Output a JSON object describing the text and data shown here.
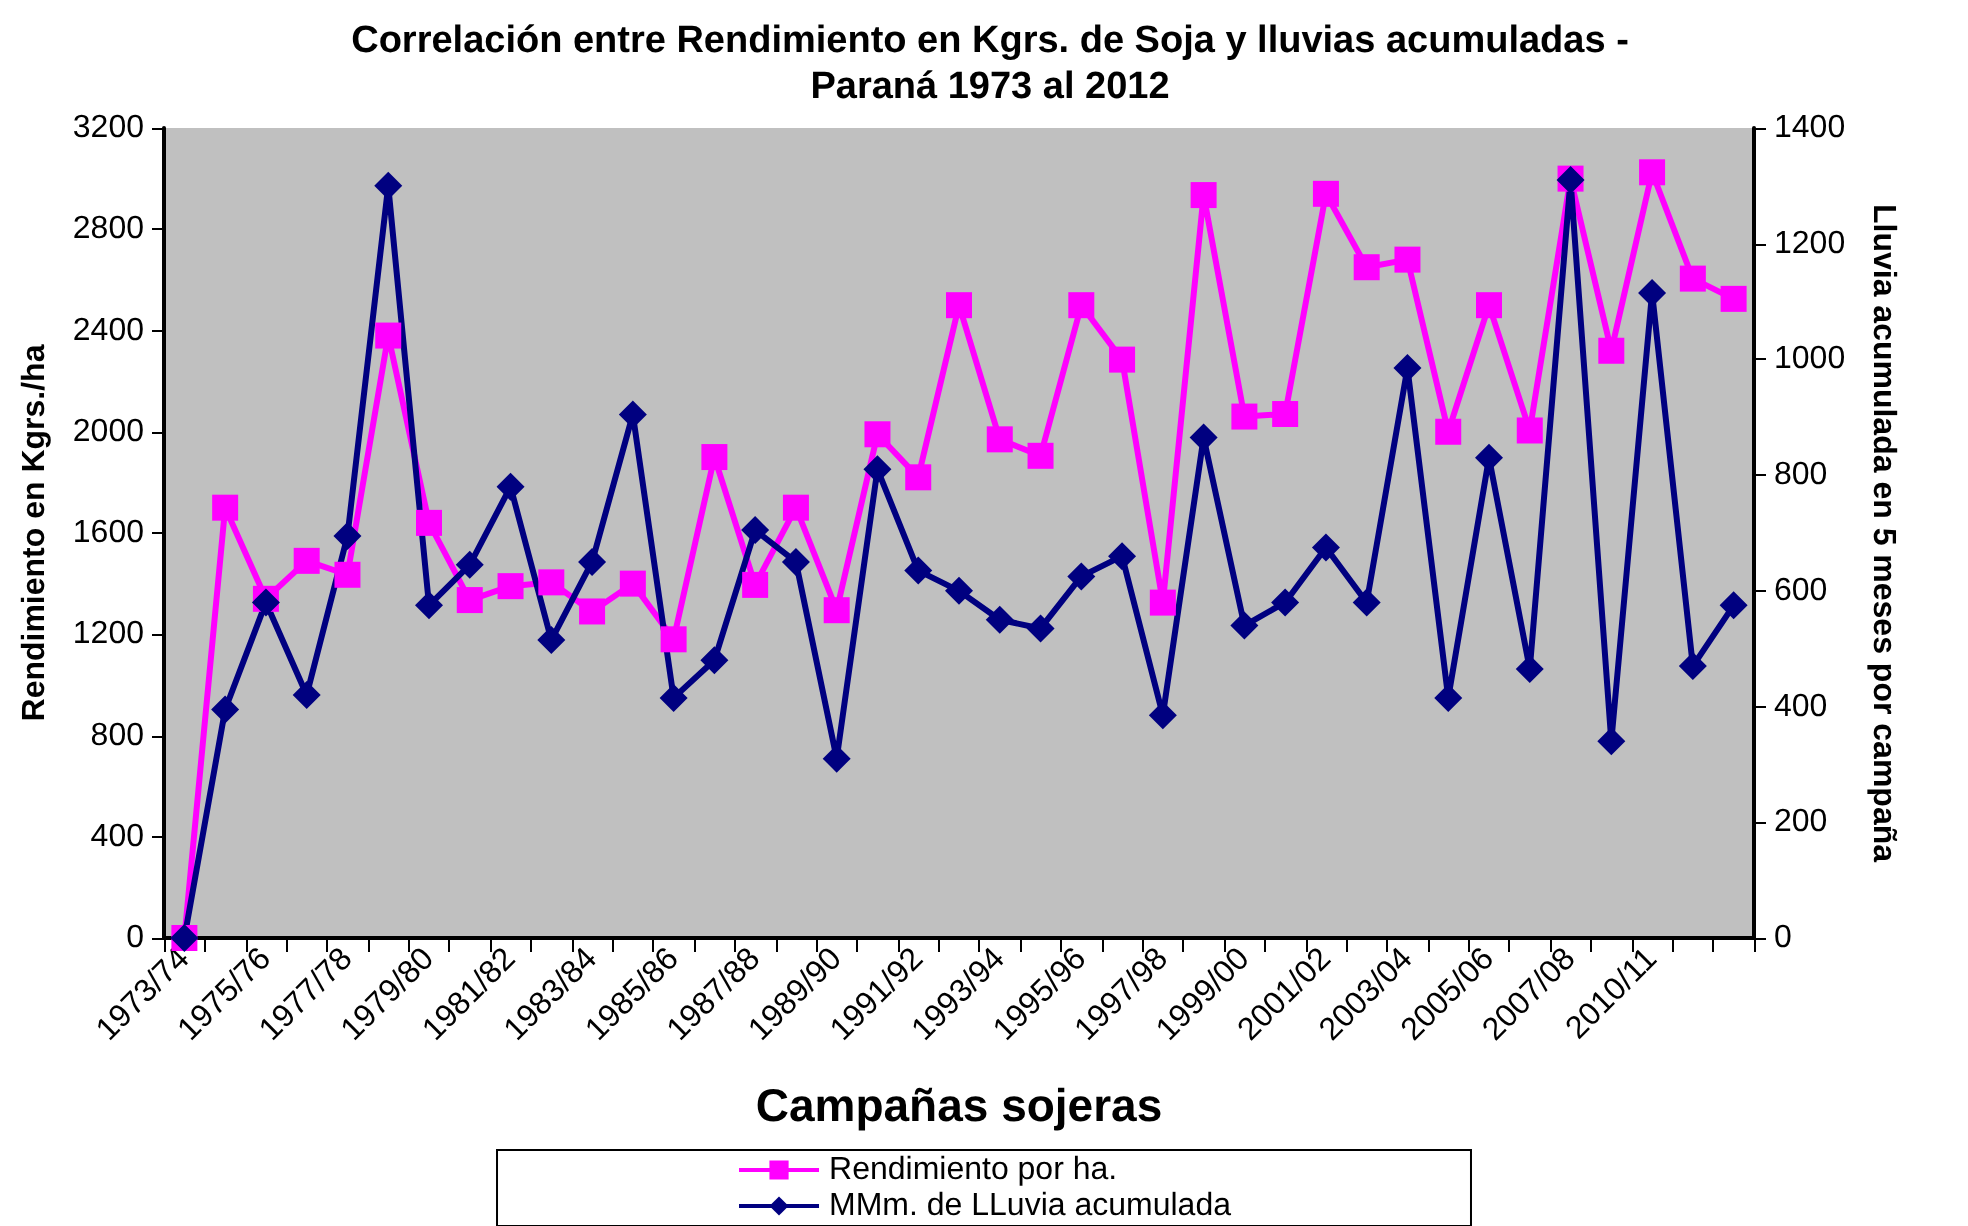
{
  "chart_data": {
    "type": "line",
    "title": "Correlación entre Rendimiento en Kgrs. de Soja y lluvias acumuladas -\nParaná 1973 al 2012",
    "xlabel": "Campañas sojeras",
    "ylabel": "Rendimiento en Kgrs./ha",
    "y2label": "Lluvia acumulada en 5 meses por campaña",
    "categories": [
      "1973/74",
      null,
      "1975/76",
      null,
      "1977/78",
      null,
      "1979/80",
      null,
      "1981/82",
      null,
      "1983/84",
      null,
      "1985/86",
      null,
      "1987/88",
      null,
      "1989/90",
      null,
      "1991/92",
      null,
      "1993/94",
      null,
      "1995/96",
      null,
      "1997/98",
      null,
      "1999/00",
      null,
      "2001/02",
      null,
      "2003/04",
      null,
      "2005/06",
      null,
      "2007/08",
      null,
      "2010/11",
      null,
      null
    ],
    "series": [
      {
        "name": "Rendimiento por ha.",
        "color": "#ff00ff",
        "marker": "square",
        "values": [
          0,
          1700,
          1340,
          1490,
          1435,
          2380,
          1640,
          1335,
          1390,
          1405,
          1290,
          1400,
          1180,
          1900,
          1395,
          1700,
          1295,
          1990,
          1820,
          2500,
          1970,
          1905,
          2500,
          2285,
          1325,
          2935,
          2060,
          2070,
          2940,
          2650,
          2680,
          2000,
          2500,
          2005,
          3000,
          2320,
          3025,
          2605,
          2525
        ]
      },
      {
        "name": "MMm. de LLuvia acumulada",
        "color": "#000080",
        "marker": "diamond",
        "axis": "y2",
        "values": [
          0,
          395,
          580,
          420,
          695,
          1300,
          575,
          645,
          780,
          515,
          650,
          905,
          415,
          480,
          705,
          650,
          310,
          810,
          635,
          600,
          550,
          535,
          625,
          660,
          385,
          865,
          540,
          580,
          675,
          580,
          985,
          415,
          830,
          465,
          1310,
          340,
          1115,
          470,
          575
        ]
      }
    ],
    "ylim": [
      0,
      3200
    ],
    "yticks": [
      0,
      400,
      800,
      1200,
      1600,
      2000,
      2400,
      2800,
      3200
    ],
    "y2lim": [
      0,
      1400
    ],
    "y2ticks": [
      0,
      200,
      400,
      600,
      800,
      1000,
      1200,
      1400
    ],
    "grid": false,
    "legend": "bottom",
    "line_style": "solid"
  }
}
